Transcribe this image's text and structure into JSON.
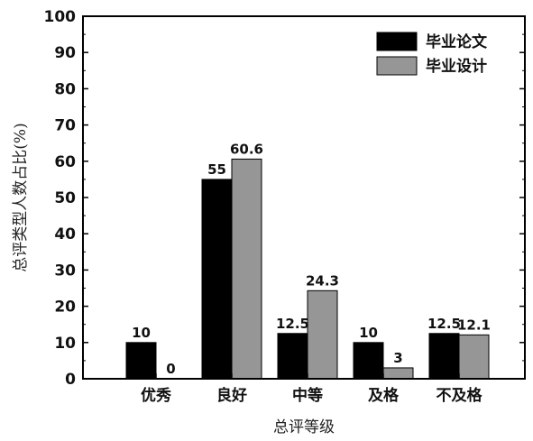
{
  "chart_data": {
    "type": "bar",
    "categories": [
      "优秀",
      "良好",
      "中等",
      "及格",
      "不及格"
    ],
    "series": [
      {
        "name": "毕业论文",
        "values": [
          10,
          55,
          12.5,
          10,
          12.5
        ],
        "labels": [
          "10",
          "55",
          "12.5",
          "10",
          "12.5"
        ],
        "color": "#000000"
      },
      {
        "name": "毕业设计",
        "values": [
          0,
          60.6,
          24.3,
          3,
          12.1
        ],
        "labels": [
          "0",
          "60.6",
          "24.3",
          "3",
          "12.1"
        ],
        "color": "#969696"
      }
    ],
    "title": "",
    "xlabel": "总评等级",
    "ylabel": "总评类型人数占比(%)",
    "ylim": [
      0,
      100
    ],
    "yticks": [
      0,
      10,
      20,
      30,
      40,
      50,
      60,
      70,
      80,
      90,
      100
    ],
    "grid": false,
    "legend_position": "top-right"
  }
}
